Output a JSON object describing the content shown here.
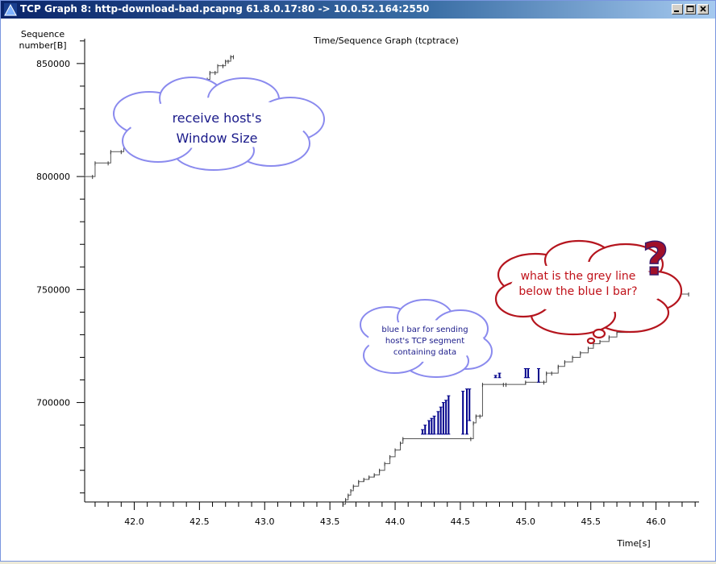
{
  "window": {
    "title": "TCP Graph 8: http-download-bad.pcapng 61.8.0.17:80 -> 10.0.52.164:2550",
    "minimize_icon": "minimize-icon",
    "maximize_icon": "maximize-icon",
    "close_icon": "close-icon"
  },
  "chart_data": {
    "type": "line",
    "title": "Time/Sequence Graph (tcptrace)",
    "ylabel_line1": "Sequence",
    "ylabel_line2": "number[B]",
    "xlabel": "Time[s]",
    "x_ticks": [
      "42.0",
      "42.5",
      "43.0",
      "43.5",
      "44.0",
      "44.5",
      "45.0",
      "45.5",
      "46.0"
    ],
    "y_ticks": [
      "850000",
      "800000",
      "750000",
      "700000"
    ],
    "xlim": [
      41.62,
      46.33
    ],
    "ylim": [
      656000,
      861000
    ],
    "series": [
      {
        "points": [
          [
            41.62,
            800000
          ],
          [
            41.68,
            800000
          ],
          [
            41.7,
            806000
          ],
          [
            41.8,
            806000
          ],
          [
            41.82,
            811000
          ],
          [
            41.9,
            811000
          ],
          [
            41.92,
            815000
          ],
          [
            42.0,
            815000
          ]
        ]
      },
      {
        "points": [
          [
            42.45,
            840000
          ],
          [
            42.5,
            840000
          ],
          [
            42.52,
            843000
          ],
          [
            42.56,
            843000
          ],
          [
            42.58,
            846000
          ],
          [
            42.62,
            846000
          ],
          [
            42.64,
            849000
          ],
          [
            42.68,
            849000
          ],
          [
            42.7,
            851000
          ],
          [
            42.72,
            851000
          ],
          [
            42.74,
            853000
          ],
          [
            42.76,
            853000
          ]
        ]
      },
      {
        "points": [
          [
            43.6,
            655000
          ],
          [
            43.62,
            657000
          ],
          [
            43.64,
            659000
          ],
          [
            43.66,
            661000
          ],
          [
            43.68,
            663000
          ],
          [
            43.72,
            665000
          ],
          [
            43.76,
            666000
          ],
          [
            43.8,
            667000
          ],
          [
            43.84,
            668000
          ],
          [
            43.88,
            670000
          ],
          [
            43.92,
            673000
          ],
          [
            43.96,
            676000
          ],
          [
            44.0,
            679000
          ],
          [
            44.04,
            682000
          ],
          [
            44.06,
            684000
          ],
          [
            44.58,
            684000
          ],
          [
            44.6,
            691000
          ],
          [
            44.62,
            694000
          ],
          [
            44.65,
            694000
          ],
          [
            44.67,
            708000
          ],
          [
            44.83,
            708000
          ],
          [
            44.85,
            708000
          ],
          [
            45.0,
            709000
          ],
          [
            45.14,
            709000
          ],
          [
            45.16,
            713000
          ],
          [
            45.2,
            713000
          ],
          [
            45.25,
            716000
          ],
          [
            45.3,
            718000
          ],
          [
            45.36,
            720000
          ],
          [
            45.42,
            722000
          ],
          [
            45.48,
            724000
          ],
          [
            45.52,
            726000
          ],
          [
            45.57,
            727000
          ],
          [
            45.64,
            729000
          ],
          [
            45.7,
            731000
          ],
          [
            45.78,
            733000
          ],
          [
            45.86,
            735000
          ],
          [
            45.94,
            737000
          ],
          [
            46.0,
            740000
          ],
          [
            46.04,
            742000
          ],
          [
            46.08,
            744000
          ],
          [
            46.12,
            746000
          ],
          [
            46.18,
            748000
          ],
          [
            46.25,
            748000
          ]
        ]
      }
    ],
    "blue_bars": [
      {
        "x": 44.21,
        "low": 686000,
        "high": 688000
      },
      {
        "x": 44.23,
        "low": 686000,
        "high": 690000
      },
      {
        "x": 44.26,
        "low": 686000,
        "high": 692000
      },
      {
        "x": 44.28,
        "low": 686000,
        "high": 693000
      },
      {
        "x": 44.3,
        "low": 686000,
        "high": 694000
      },
      {
        "x": 44.33,
        "low": 686000,
        "high": 696000
      },
      {
        "x": 44.35,
        "low": 686000,
        "high": 698000
      },
      {
        "x": 44.37,
        "low": 686000,
        "high": 700000
      },
      {
        "x": 44.39,
        "low": 686000,
        "high": 701000
      },
      {
        "x": 44.41,
        "low": 686000,
        "high": 703000
      },
      {
        "x": 44.52,
        "low": 686000,
        "high": 705000
      },
      {
        "x": 44.55,
        "low": 686000,
        "high": 706000
      },
      {
        "x": 44.57,
        "low": 692000,
        "high": 706000
      },
      {
        "x": 44.77,
        "low": 711000,
        "high": 712000
      },
      {
        "x": 44.8,
        "low": 711000,
        "high": 713000
      },
      {
        "x": 45.0,
        "low": 711000,
        "high": 715000
      },
      {
        "x": 45.02,
        "low": 711000,
        "high": 715000
      },
      {
        "x": 45.1,
        "low": 709000,
        "high": 715000
      }
    ]
  },
  "annotations": {
    "cloud1": {
      "line1": "receive host's",
      "line2": "Window Size"
    },
    "cloud2": {
      "line1": "blue I bar for sending",
      "line2": "host's TCP segment",
      "line3": "containing data"
    },
    "cloud3": {
      "line1": "what is the grey line",
      "line2": "below the blue I bar?",
      "mark": "?"
    }
  }
}
